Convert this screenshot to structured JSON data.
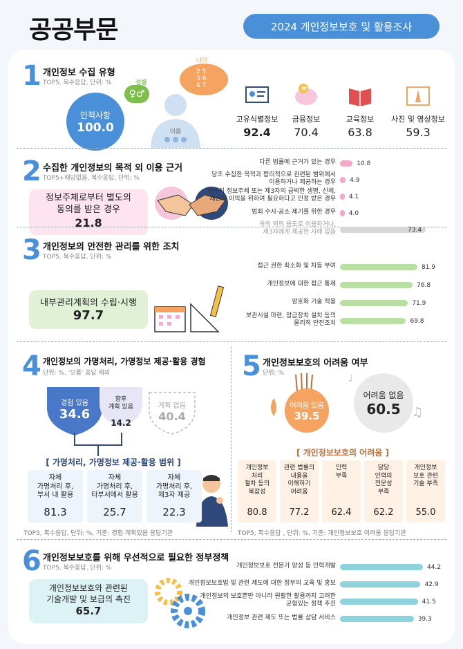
{
  "header": {
    "title": "공공부문",
    "badge": "2024 개인정보보호 및 활용조사"
  },
  "s1": {
    "num": "1",
    "title": "개인정보 수집 유형",
    "sub": "TOP5, 복수응답, 단위: %",
    "circle_label": "인적사항",
    "circle_value": "100.0",
    "gender_label": "성별",
    "gender_icon": "♀♂",
    "age_label": "나이",
    "name_label": "이름",
    "items": [
      {
        "label": "고유식별정보",
        "value": "92.4",
        "icon": "id-card-icon"
      },
      {
        "label": "금융정보",
        "value": "70.4",
        "icon": "piggy-bank-icon"
      },
      {
        "label": "교육정보",
        "value": "63.8",
        "icon": "book-icon"
      },
      {
        "label": "사진 및 영상정보",
        "value": "59.3",
        "icon": "photo-icon"
      }
    ]
  },
  "s2": {
    "num": "2",
    "title": "수집한 개인정보의 목적 외 이용 근거",
    "sub": "TOP5+해당없음, 복수응답, 단위: %",
    "box_label_1": "정보주체로부터 별도의",
    "box_label_2": "동의를 받은 경우",
    "box_value": "21.8",
    "bars": [
      {
        "label": "다른 법률에 근거가 있는 경우",
        "value": 10.8,
        "text": "10.8"
      },
      {
        "label": "당초 수집한 목적과 합리적으로 관련된 범위에서\n이용하거나 제공하는 경우",
        "value": 4.9,
        "text": "4.9"
      },
      {
        "label": "명백히 정보주체 또는 제3자의 급박한 생명, 신체,\n재산의 이익을 위하여 필요하다고 인정 받은 경우",
        "value": 4.1,
        "text": "4.1"
      },
      {
        "label": "범죄 수사·공소 제기를 위한 경우",
        "value": 4.0,
        "text": "4.0"
      },
      {
        "label": "목적 외의 용도로 이용하거나,\n제3자에게 제공한 사례 없음",
        "value": 73.4,
        "text": "73.4"
      }
    ]
  },
  "s3": {
    "num": "3",
    "title": "개인정보의 안전한 관리를 위한 조치",
    "sub": "TOP5, 복수응답, 단위: %",
    "box_label": "내부관리계획의 수립·시행",
    "box_value": "97.7",
    "bars": [
      {
        "label": "접근 권한 최소화 및 차등 부여",
        "value": 81.9,
        "text": "81.9"
      },
      {
        "label": "개인정보에 대한 접근 통제",
        "value": 76.8,
        "text": "76.8"
      },
      {
        "label": "암호화 기술 적용",
        "value": 71.9,
        "text": "71.9"
      },
      {
        "label": "보관시설 마련, 잠금장치 설치 등의\n물리적 안전조치",
        "value": 69.8,
        "text": "69.8"
      }
    ]
  },
  "s4": {
    "num": "4",
    "title": "개인정보의 가명처리, 가명정보 제공·활용 경험",
    "sub": "단위: %, '모름' 응답 제외",
    "shields": [
      {
        "label": "경험 있음",
        "value": "34.6"
      },
      {
        "label": "향후\n계획 있음",
        "value": "14.2"
      },
      {
        "label": "계획 없음",
        "value": "40.4"
      }
    ],
    "scope_title": "[ 가명처리, 가명정보 제공·활용 범위 ]",
    "scope": [
      {
        "label": "자체\n가명처리 후,\n부서 내 활용",
        "value": "81.3"
      },
      {
        "label": "자체\n가명처리 후,\n타부서에서 활용",
        "value": "25.7"
      },
      {
        "label": "자체\n가명처리 후,\n제3자 제공",
        "value": "22.3"
      }
    ],
    "footnote": "TOP3, 복수응답, 단위: %, 기준: 경험·계획있음 응답기관"
  },
  "s5": {
    "num": "5",
    "title": "개인정보보호의 어려움 여부",
    "sub": "단위: %",
    "yes_label": "어려움 있음",
    "yes_value": "39.5",
    "no_label": "어려움 없음",
    "no_value": "60.5",
    "diff_title": "[ 개인정보보호의 어려움 ]",
    "cells": [
      {
        "label": "개인정보\n처리\n절차 등의\n복잡성",
        "value": "80.8"
      },
      {
        "label": "관련 법률의\n내용을\n이해하기\n어려움",
        "value": "77.2"
      },
      {
        "label": "인력\n부족",
        "value": "62.4"
      },
      {
        "label": "담당\n인력의\n전문성\n부족",
        "value": "62.2"
      },
      {
        "label": "개인정보\n보호 관련\n기술 부족",
        "value": "55.0"
      }
    ],
    "footnote": "TOP5, 복수응답 , 단위: %, 기준: 개인정보보호 어려움 응답기관"
  },
  "s6": {
    "num": "6",
    "title": "개인정보보호를 위해 우선적으로 필요한 정부정책",
    "sub": "TOP5, 복수응답, 단위: %",
    "box_label_1": "개인정보보호와 관련된",
    "box_label_2": "기술개발 및 보급의 촉진",
    "box_value": "65.7",
    "bars": [
      {
        "label": "개인정보보호 전문가 양성 등 인력개발",
        "value": 44.2,
        "text": "44.2"
      },
      {
        "label": "개인정보보호법 및 관련 제도에 대한 정부의 교육 및 홍보",
        "value": 42.9,
        "text": "42.9"
      },
      {
        "label": "개인정보의 보호뿐만 아니라 원활한 활용까지 고려한\n균형있는 정책 추진",
        "value": 41.5,
        "text": "41.5"
      },
      {
        "label": "개인정보 관련 제도 또는 법률 상담 서비스",
        "value": 39.3,
        "text": "39.3"
      }
    ]
  },
  "colors": {
    "blue": "#4a90d9",
    "pink": "#f3a9cc",
    "green": "#b9dfa4",
    "teal": "#8ed3dc",
    "orange": "#f4a361",
    "grey": "#d7d7d7"
  }
}
